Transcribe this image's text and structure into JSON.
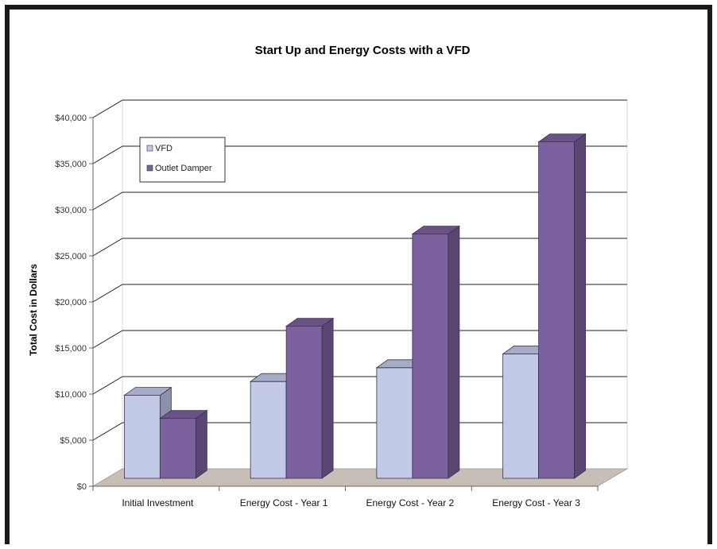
{
  "chart_data": {
    "type": "bar",
    "title": "Start Up and Energy Costs with a VFD",
    "xlabel": "",
    "ylabel": "Total Cost in Dollars",
    "ylim": [
      0,
      40000
    ],
    "y_tick_labels": [
      "$0",
      "$5,000",
      "$10,000",
      "$15,000",
      "$20,000",
      "$25,000",
      "$30,000",
      "$35,000",
      "$40,000"
    ],
    "y_ticks": [
      0,
      5000,
      10000,
      15000,
      20000,
      25000,
      30000,
      35000,
      40000
    ],
    "categories": [
      "Initial Investment",
      "Energy Cost - Year 1",
      "Energy Cost - Year 2",
      "Energy Cost - Year 3"
    ],
    "series": [
      {
        "name": "VFD",
        "values": [
          9000,
          10500,
          12000,
          13500
        ],
        "color": "#c3cae8"
      },
      {
        "name": "Outlet Damper",
        "values": [
          6500,
          16500,
          26500,
          36500
        ],
        "color": "#7b629e"
      }
    ],
    "grid": true,
    "legend_position": "top-left",
    "floor_color": "#c7bfb7"
  }
}
